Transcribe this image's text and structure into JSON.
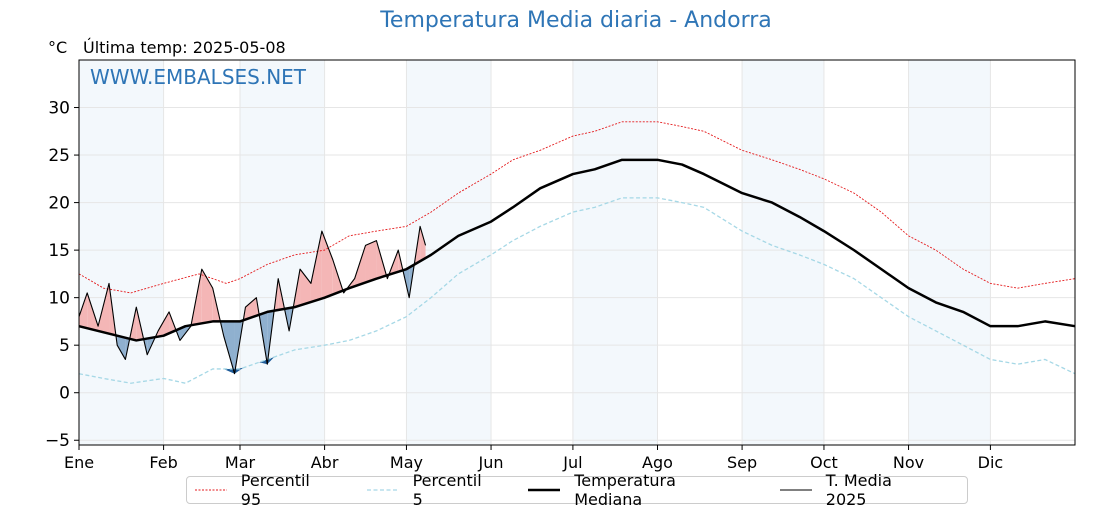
{
  "header": {
    "title": "Temperatura Media diaria - Andorra",
    "unit": "°C",
    "last_temp": "Última temp: 2025-05-08",
    "watermark": "WWW.EMBALSES.NET"
  },
  "colors": {
    "title": "#2e75b6",
    "watermark": "#2e75b6",
    "p95": "#e41a1c",
    "p5": "#a6d8e6",
    "median": "#000000",
    "current": "#000000",
    "above_fill": "#f4b6b6",
    "below_fill": "#8fb0cf",
    "below_deep": "#1f5c9a",
    "month_band": "#f3f8fc"
  },
  "legend": [
    {
      "key": "p95",
      "label": "Percentil 95"
    },
    {
      "key": "p5",
      "label": "Percentil 5"
    },
    {
      "key": "median",
      "label": "Temperatura Mediana"
    },
    {
      "key": "current",
      "label": "T. Media 2025"
    }
  ],
  "chart_data": {
    "type": "line",
    "title": "Temperatura Media diaria - Andorra",
    "ylabel": "°C",
    "ylim": [
      -5.5,
      35
    ],
    "yticks": [
      -5,
      0,
      5,
      10,
      15,
      20,
      25,
      30
    ],
    "xlim": [
      1,
      366
    ],
    "months": [
      {
        "label": "Ene",
        "day": 1
      },
      {
        "label": "Feb",
        "day": 32
      },
      {
        "label": "Mar",
        "day": 60
      },
      {
        "label": "Abr",
        "day": 91
      },
      {
        "label": "May",
        "day": 121
      },
      {
        "label": "Jun",
        "day": 152
      },
      {
        "label": "Jul",
        "day": 182
      },
      {
        "label": "Ago",
        "day": 213
      },
      {
        "label": "Sep",
        "day": 244
      },
      {
        "label": "Oct",
        "day": 274
      },
      {
        "label": "Nov",
        "day": 305
      },
      {
        "label": "Dic",
        "day": 335
      }
    ],
    "series": [
      {
        "name": "Percentil 95",
        "style": "dotted",
        "x": [
          1,
          10,
          20,
          32,
          45,
          55,
          60,
          70,
          80,
          91,
          100,
          110,
          121,
          130,
          140,
          152,
          160,
          170,
          182,
          190,
          200,
          213,
          222,
          230,
          244,
          255,
          265,
          274,
          285,
          295,
          305,
          315,
          325,
          335,
          345,
          355,
          366
        ],
        "y": [
          12.5,
          11.0,
          10.5,
          11.5,
          12.5,
          11.5,
          12.0,
          13.5,
          14.5,
          15.0,
          16.5,
          17.0,
          17.5,
          19.0,
          21.0,
          23.0,
          24.5,
          25.5,
          27.0,
          27.5,
          28.5,
          28.5,
          28.0,
          27.5,
          25.5,
          24.5,
          23.5,
          22.5,
          21.0,
          19.0,
          16.5,
          15.0,
          13.0,
          11.5,
          11.0,
          11.5,
          12.0
        ]
      },
      {
        "name": "Percentil 5",
        "style": "dashed",
        "x": [
          1,
          10,
          20,
          32,
          40,
          50,
          60,
          70,
          80,
          91,
          100,
          110,
          121,
          130,
          140,
          152,
          160,
          170,
          182,
          190,
          200,
          213,
          222,
          230,
          244,
          255,
          265,
          274,
          285,
          295,
          305,
          315,
          325,
          335,
          345,
          355,
          366
        ],
        "y": [
          2.0,
          1.5,
          1.0,
          1.5,
          1.0,
          2.5,
          2.5,
          3.5,
          4.5,
          5.0,
          5.5,
          6.5,
          8.0,
          10.0,
          12.5,
          14.5,
          16.0,
          17.5,
          19.0,
          19.5,
          20.5,
          20.5,
          20.0,
          19.5,
          17.0,
          15.5,
          14.5,
          13.5,
          12.0,
          10.0,
          8.0,
          6.5,
          5.0,
          3.5,
          3.0,
          3.5,
          2.0
        ]
      },
      {
        "name": "Temperatura Mediana",
        "style": "thick",
        "x": [
          1,
          8,
          15,
          22,
          32,
          40,
          50,
          60,
          70,
          80,
          91,
          100,
          110,
          121,
          130,
          140,
          152,
          160,
          170,
          182,
          190,
          200,
          213,
          222,
          230,
          244,
          255,
          265,
          274,
          285,
          295,
          305,
          315,
          325,
          335,
          345,
          355,
          366
        ],
        "y": [
          7.0,
          6.5,
          6.0,
          5.5,
          6.0,
          7.0,
          7.5,
          7.5,
          8.5,
          9.0,
          10.0,
          11.0,
          12.0,
          13.0,
          14.5,
          16.5,
          18.0,
          19.5,
          21.5,
          23.0,
          23.5,
          24.5,
          24.5,
          24.0,
          23.0,
          21.0,
          20.0,
          18.5,
          17.0,
          15.0,
          13.0,
          11.0,
          9.5,
          8.5,
          7.0,
          7.0,
          7.5,
          7.0
        ]
      },
      {
        "name": "T. Media 2025",
        "style": "thin",
        "x": [
          1,
          4,
          8,
          12,
          15,
          18,
          22,
          26,
          30,
          34,
          38,
          42,
          46,
          50,
          54,
          58,
          62,
          66,
          70,
          74,
          78,
          82,
          86,
          90,
          94,
          98,
          102,
          106,
          110,
          114,
          118,
          122,
          126,
          128
        ],
        "y": [
          8.0,
          10.5,
          7.0,
          11.5,
          5.0,
          3.5,
          9.0,
          4.0,
          6.5,
          8.5,
          5.5,
          7.0,
          13.0,
          11.0,
          6.0,
          2.0,
          9.0,
          10.0,
          3.0,
          12.0,
          6.5,
          13.0,
          11.5,
          17.0,
          14.0,
          10.5,
          12.0,
          15.5,
          16.0,
          12.0,
          15.0,
          10.0,
          17.5,
          15.5
        ]
      }
    ],
    "grid": true,
    "legend_position": "bottom"
  }
}
